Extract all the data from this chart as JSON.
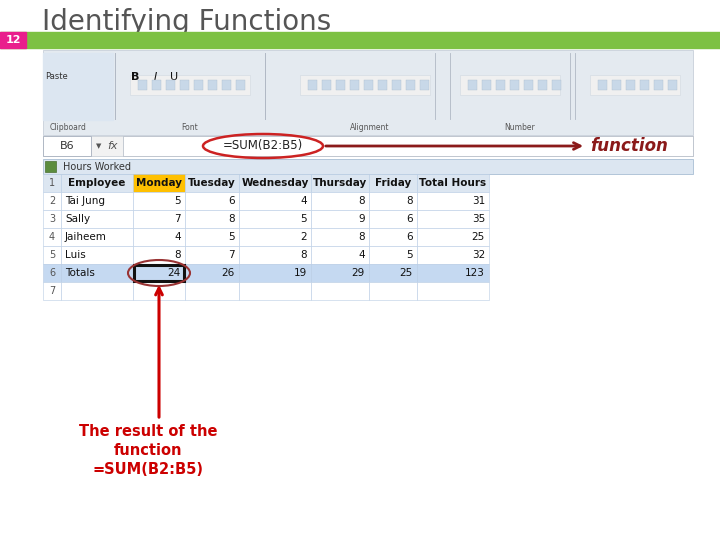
{
  "title": "Identifying Functions",
  "slide_number": "12",
  "title_color": "#555555",
  "title_fontsize": 20,
  "green_bar_color": "#7DC143",
  "slide_num_bg": "#e91e8c",
  "bg_color": "#ffffff",
  "formula_bar_label": "B6",
  "formula_text": "=SUM(B2:B5)",
  "function_label": "function",
  "function_label_color": "#8B1a1a",
  "annotation_text": "The result of the\nfunction\n=SUM(B2:B5)",
  "annotation_color": "#CC0000",
  "spreadsheet_title": "Hours Worked",
  "rows": [
    [
      "1",
      "Employee",
      "Monday",
      "Tuesday",
      "Wednesday",
      "Thursday",
      "Friday",
      "Total Hours"
    ],
    [
      "2",
      "Tai Jung",
      "5",
      "6",
      "4",
      "8",
      "8",
      "31"
    ],
    [
      "3",
      "Sally",
      "7",
      "8",
      "5",
      "9",
      "6",
      "35"
    ],
    [
      "4",
      "Jaiheem",
      "4",
      "5",
      "2",
      "8",
      "6",
      "25"
    ],
    [
      "5",
      "Luis",
      "8",
      "7",
      "8",
      "4",
      "5",
      "32"
    ],
    [
      "6",
      "Totals",
      "24",
      "26",
      "19",
      "29",
      "25",
      "123"
    ]
  ],
  "highlighted_col": 2,
  "row6_bg": "#c5d9f1",
  "col_b_header_bg": "#ffc000",
  "header_bg": "#dce6f1",
  "cell_border": "#b8cce4",
  "ribbon_bg": "#e4eaf0",
  "ribbon_section_bg": "#dce6f1"
}
